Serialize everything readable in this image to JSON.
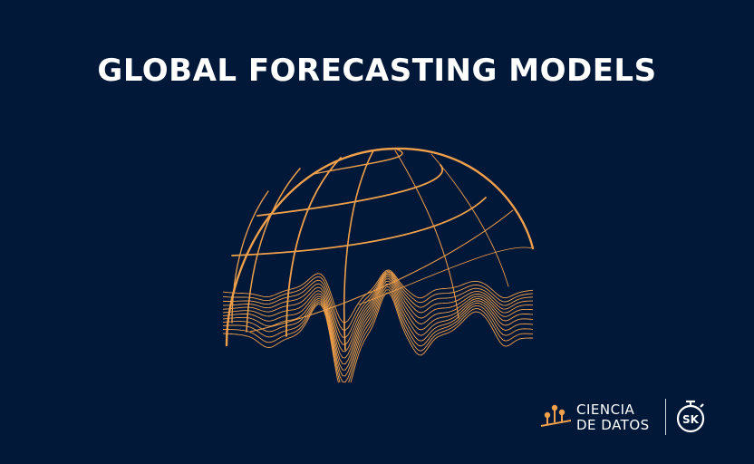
{
  "header": {
    "title": "GLOBAL FORECASTING MODELS"
  },
  "logos": {
    "ciencia_line1": "CIENCIA",
    "ciencia_line2": "DE DATOS",
    "sk_logo_text": "SK"
  },
  "colors": {
    "background": "#011838",
    "accent": "#f0a04a",
    "text": "#ffffff"
  },
  "icons": [
    "globe-wave-illustration",
    "data-chart-icon",
    "stopwatch-logo-icon"
  ]
}
